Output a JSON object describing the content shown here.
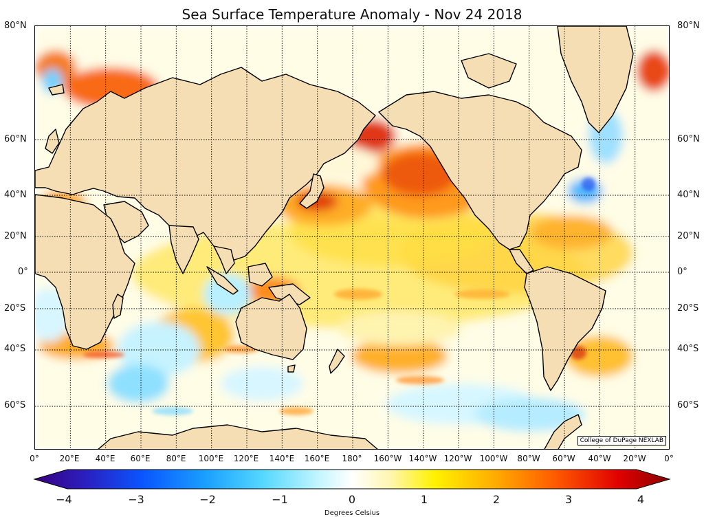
{
  "title": "Sea Surface Temperature Anomaly - Nov 24 2018",
  "credit": "College of DuPage NEXLAB",
  "colorbar": {
    "label": "Degrees Celsius",
    "ticks": [
      "−4",
      "−3",
      "−2",
      "−1",
      "0",
      "1",
      "2",
      "3",
      "4"
    ],
    "range": [
      -4,
      4
    ]
  },
  "map": {
    "lat_labels": [
      "80°N",
      "60°N",
      "40°N",
      "20°N",
      "0°",
      "20°S",
      "40°S",
      "60°S"
    ],
    "lon_labels": [
      "0°",
      "20°E",
      "40°E",
      "60°E",
      "80°E",
      "100°E",
      "120°E",
      "140°E",
      "160°E",
      "180°",
      "160°W",
      "140°W",
      "120°W",
      "100°W",
      "80°W",
      "60°W",
      "40°W",
      "20°W",
      "0°"
    ],
    "projection": "mercator",
    "land_color": "#f5deb3",
    "coast_color": "#000000"
  }
}
